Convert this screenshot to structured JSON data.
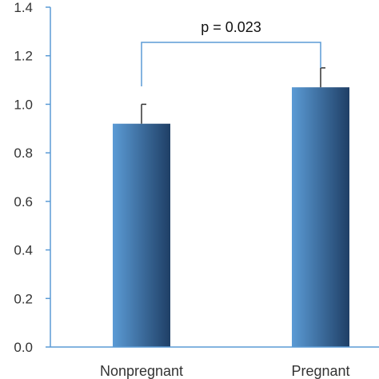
{
  "chart_data": {
    "type": "bar",
    "categories": [
      "Nonpregnant",
      "Pregnant"
    ],
    "series": [
      {
        "values": [
          0.92,
          1.07
        ],
        "error_upper": [
          0.08,
          0.08
        ]
      }
    ],
    "title": "",
    "xlabel": "",
    "ylabel": "",
    "ylim": [
      0,
      1.4
    ],
    "yticks": [
      0.0,
      0.2,
      0.4,
      0.6,
      0.8,
      1.0,
      1.2,
      1.4
    ],
    "ytick_labels": [
      "0.0",
      "0.2",
      "0.4",
      "0.6",
      "0.8",
      "1.0",
      "1.2",
      "1.4"
    ],
    "grid": false,
    "legend": "none",
    "annotations": [
      {
        "text": "p = 0.023",
        "between": [
          "Nonpregnant",
          "Pregnant"
        ]
      }
    ],
    "colors": {
      "bar_light": "#5b9bd5",
      "bar_dark": "#1f3f66",
      "axis": "#5b9bd5",
      "bracket": "#5b9bd5",
      "error_bar": "#333333"
    }
  }
}
